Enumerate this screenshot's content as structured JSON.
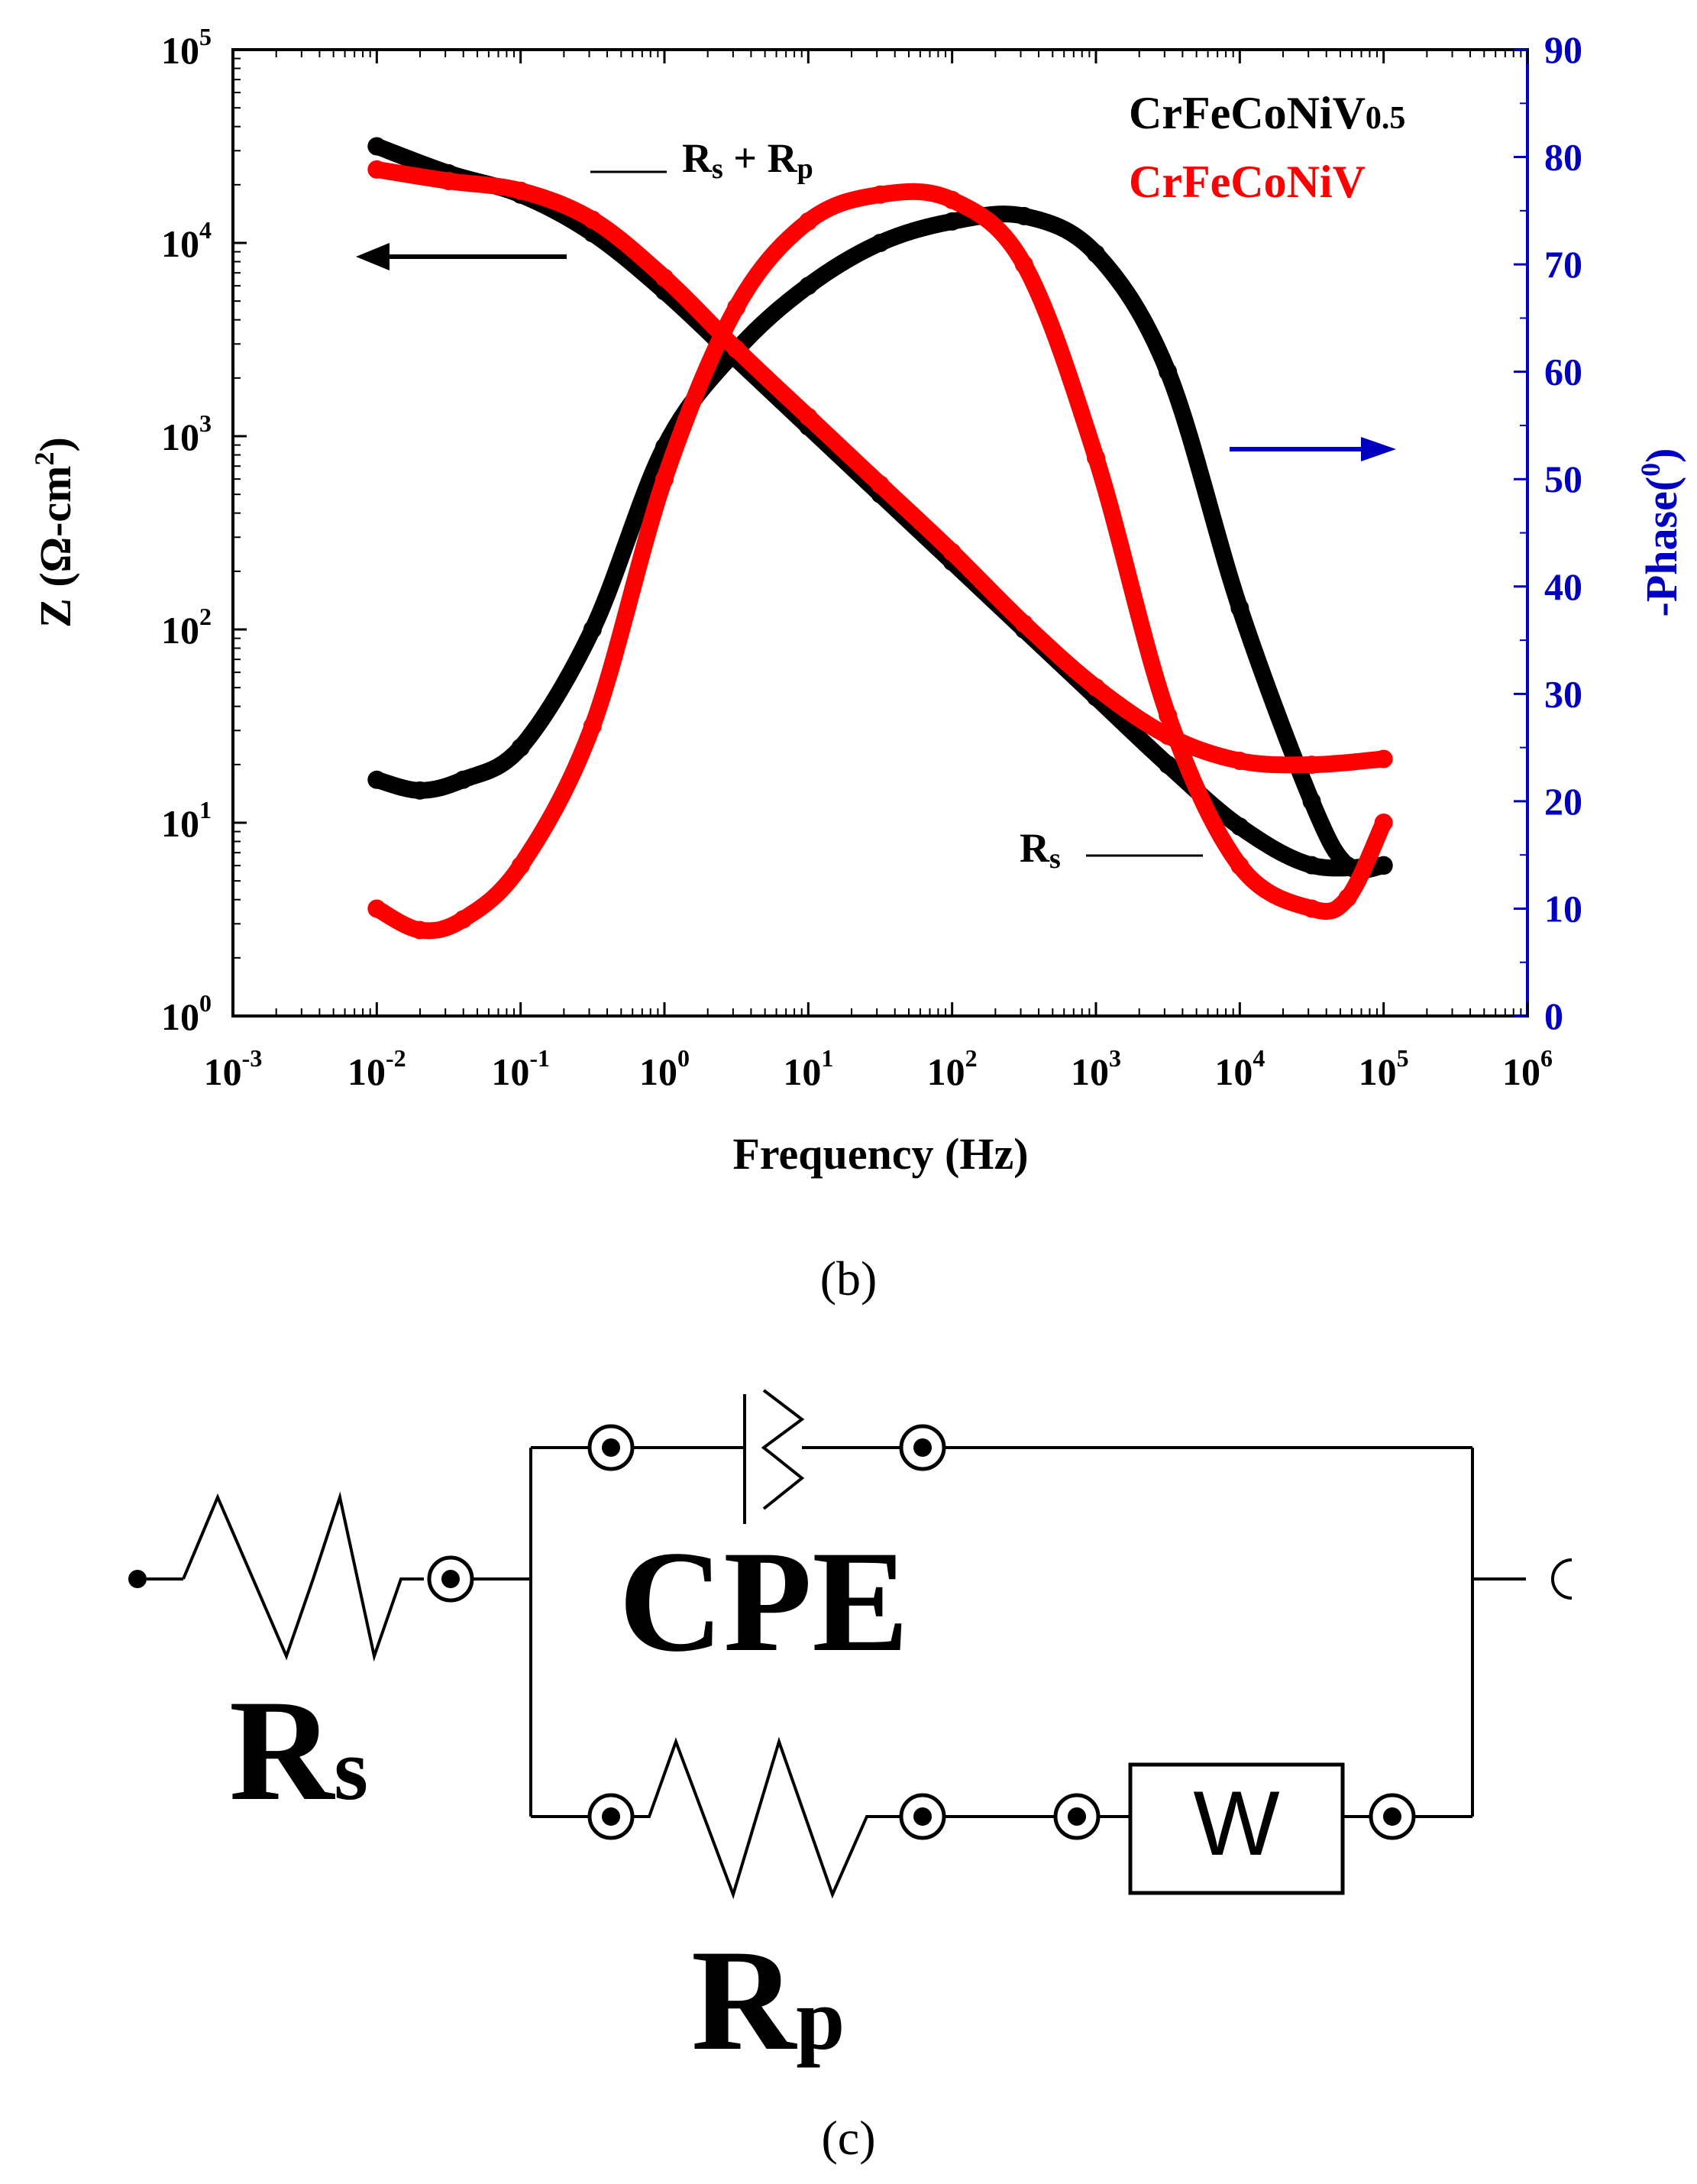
{
  "chart_data": {
    "type": "line",
    "panel_label": "(b)",
    "xlabel": "Frequency (Hz)",
    "ylabel_left": "Z (Ω-cm²)",
    "ylabel_left_text": "Z (Ω-cm",
    "ylabel_left_sup": "2",
    "ylabel_left_close": ")",
    "ylabel_right": "-Phase(⁰)",
    "ylabel_right_text": "-Phase(",
    "ylabel_right_sup": "0",
    "ylabel_right_close": ")",
    "xscale": "log",
    "xlim_exp": [
      -3,
      6
    ],
    "x_ticks": [
      {
        "base": "10",
        "exp": "-3"
      },
      {
        "base": "10",
        "exp": "-2"
      },
      {
        "base": "10",
        "exp": "-1"
      },
      {
        "base": "10",
        "exp": "0"
      },
      {
        "base": "10",
        "exp": "1"
      },
      {
        "base": "10",
        "exp": "2"
      },
      {
        "base": "10",
        "exp": "3"
      },
      {
        "base": "10",
        "exp": "4"
      },
      {
        "base": "10",
        "exp": "5"
      },
      {
        "base": "10",
        "exp": "6"
      }
    ],
    "yscale_left": "log",
    "ylim_left_exp": [
      0,
      5
    ],
    "y_left_ticks": [
      {
        "base": "10",
        "exp": "0"
      },
      {
        "base": "10",
        "exp": "1"
      },
      {
        "base": "10",
        "exp": "2"
      },
      {
        "base": "10",
        "exp": "3"
      },
      {
        "base": "10",
        "exp": "4"
      },
      {
        "base": "10",
        "exp": "5"
      }
    ],
    "ylim_right": [
      0,
      90
    ],
    "y_right_ticks": [
      "0",
      "10",
      "20",
      "30",
      "40",
      "50",
      "60",
      "70",
      "80",
      "90"
    ],
    "legend": {
      "position": "top-right",
      "entries": [
        {
          "name": "CrFeCoNiV",
          "sub": "0.5",
          "color": "#000000"
        },
        {
          "name": "CrFeCoNiV",
          "sub": "",
          "color": "#ff0000"
        }
      ]
    },
    "colors": {
      "black_series": "#000000",
      "red_series": "#ff0000",
      "right_axis": "#0000c0"
    },
    "series": [
      {
        "name": "CrFeCoNiV0.5 |Z|",
        "axis": "left",
        "color": "#000000",
        "x_log10": [
          -2,
          -1.5,
          -1,
          -0.5,
          0,
          0.5,
          1,
          1.5,
          2,
          2.5,
          3,
          3.5,
          4,
          4.5,
          5
        ],
        "y_log10": [
          4.5,
          4.36,
          4.25,
          4.05,
          3.75,
          3.4,
          3.05,
          2.7,
          2.35,
          2.0,
          1.65,
          1.3,
          0.98,
          0.78,
          0.78
        ]
      },
      {
        "name": "CrFeCoNiV |Z|",
        "axis": "left",
        "color": "#ff0000",
        "x_log10": [
          -2,
          -1.5,
          -1,
          -0.5,
          0,
          0.5,
          1,
          1.5,
          2,
          2.5,
          3,
          3.5,
          4,
          4.5,
          5
        ],
        "y_log10": [
          4.38,
          4.32,
          4.27,
          4.12,
          3.82,
          3.45,
          3.1,
          2.75,
          2.4,
          2.03,
          1.7,
          1.45,
          1.32,
          1.3,
          1.33
        ]
      },
      {
        "name": "CrFeCoNiV0.5 -Phase",
        "axis": "right",
        "color": "#000000",
        "x_log10": [
          -2,
          -1.7,
          -1.4,
          -1,
          -0.5,
          0,
          0.5,
          1,
          1.5,
          2,
          2.5,
          3,
          3.5,
          4,
          4.5,
          4.75,
          5
        ],
        "y": [
          22,
          21,
          22,
          25,
          36,
          53,
          62,
          68,
          72,
          74,
          74.5,
          71,
          60,
          38,
          20,
          14,
          14
        ]
      },
      {
        "name": "CrFeCoNiV -Phase",
        "axis": "right",
        "color": "#ff0000",
        "x_log10": [
          -2,
          -1.7,
          -1.4,
          -1,
          -0.5,
          0,
          0.5,
          1,
          1.5,
          2,
          2.5,
          3,
          3.5,
          4,
          4.5,
          4.75,
          5
        ],
        "y": [
          10,
          8,
          9,
          14,
          27,
          50,
          66,
          74,
          76.5,
          76,
          70,
          52,
          28,
          14,
          10,
          11,
          18
        ]
      }
    ],
    "annotations": [
      {
        "text": "R",
        "sub": "s",
        "text2": " + R",
        "sub2": "p",
        "target": "low-frequency plateau of |Z|"
      },
      {
        "text": "R",
        "sub": "s",
        "target": "high-frequency plateau of |Z|"
      },
      {
        "arrow": "left",
        "meaning": "black curves read on left axis",
        "color": "#000000"
      },
      {
        "arrow": "right",
        "meaning": "phase curves read on right axis",
        "color": "#0000c0"
      }
    ]
  },
  "circuit": {
    "panel_label": "(c)",
    "labels": {
      "cpe": "CPE",
      "rs_main": "R",
      "rs_sub": "s",
      "rp_main": "R",
      "rp_sub": "p",
      "w": "W"
    }
  }
}
